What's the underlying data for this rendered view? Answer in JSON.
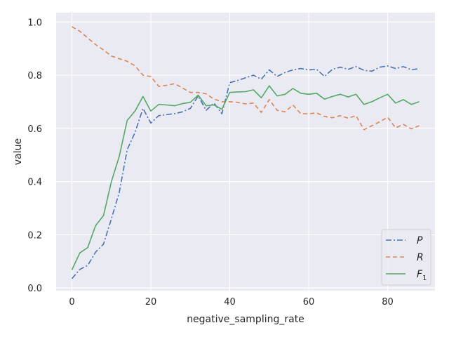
{
  "chart_data": {
    "type": "line",
    "xlabel": "negative_sampling_rate",
    "ylabel": "value",
    "xlim": [
      -4,
      92
    ],
    "ylim": [
      -0.01,
      1.035
    ],
    "xticks": [
      0,
      20,
      40,
      60,
      80
    ],
    "yticks": [
      0.0,
      0.2,
      0.4,
      0.6,
      0.8,
      1.0
    ],
    "grid": true,
    "background": "#eaeaf2",
    "legend_position": "lower-right",
    "x": [
      0,
      2,
      4,
      6,
      8,
      10,
      12,
      14,
      16,
      18,
      20,
      22,
      24,
      26,
      28,
      30,
      32,
      34,
      36,
      38,
      40,
      42,
      44,
      46,
      48,
      50,
      52,
      54,
      56,
      58,
      60,
      62,
      64,
      66,
      68,
      70,
      72,
      74,
      76,
      78,
      80,
      82,
      84,
      86,
      88
    ],
    "series": [
      {
        "name": "P",
        "display": "P",
        "sub": "",
        "color": "#4c72b0",
        "dash": "8 3 2 3",
        "values": [
          0.035,
          0.07,
          0.085,
          0.135,
          0.165,
          0.26,
          0.36,
          0.52,
          0.585,
          0.675,
          0.62,
          0.648,
          0.652,
          0.655,
          0.662,
          0.675,
          0.722,
          0.668,
          0.695,
          0.655,
          0.772,
          0.78,
          0.79,
          0.8,
          0.785,
          0.82,
          0.795,
          0.81,
          0.82,
          0.825,
          0.82,
          0.822,
          0.795,
          0.822,
          0.83,
          0.822,
          0.832,
          0.818,
          0.815,
          0.83,
          0.835,
          0.825,
          0.832,
          0.82,
          0.825
        ]
      },
      {
        "name": "R",
        "display": "R",
        "sub": "",
        "color": "#dd8452",
        "dash": "6 4",
        "values": [
          0.982,
          0.965,
          0.94,
          0.915,
          0.895,
          0.872,
          0.862,
          0.852,
          0.835,
          0.8,
          0.795,
          0.758,
          0.762,
          0.768,
          0.752,
          0.735,
          0.735,
          0.73,
          0.71,
          0.7,
          0.7,
          0.698,
          0.692,
          0.695,
          0.66,
          0.708,
          0.668,
          0.662,
          0.688,
          0.655,
          0.655,
          0.658,
          0.645,
          0.64,
          0.648,
          0.638,
          0.648,
          0.595,
          0.61,
          0.625,
          0.642,
          0.602,
          0.615,
          0.598,
          0.61
        ]
      },
      {
        "name": "F1",
        "display": "F",
        "sub": "1",
        "color": "#55a868",
        "dash": "",
        "values": [
          0.068,
          0.132,
          0.152,
          0.235,
          0.272,
          0.4,
          0.495,
          0.63,
          0.665,
          0.72,
          0.665,
          0.69,
          0.688,
          0.685,
          0.693,
          0.698,
          0.725,
          0.685,
          0.688,
          0.672,
          0.735,
          0.737,
          0.738,
          0.745,
          0.715,
          0.76,
          0.722,
          0.728,
          0.75,
          0.732,
          0.728,
          0.732,
          0.71,
          0.72,
          0.728,
          0.718,
          0.728,
          0.69,
          0.7,
          0.715,
          0.728,
          0.695,
          0.708,
          0.69,
          0.7
        ]
      }
    ]
  }
}
